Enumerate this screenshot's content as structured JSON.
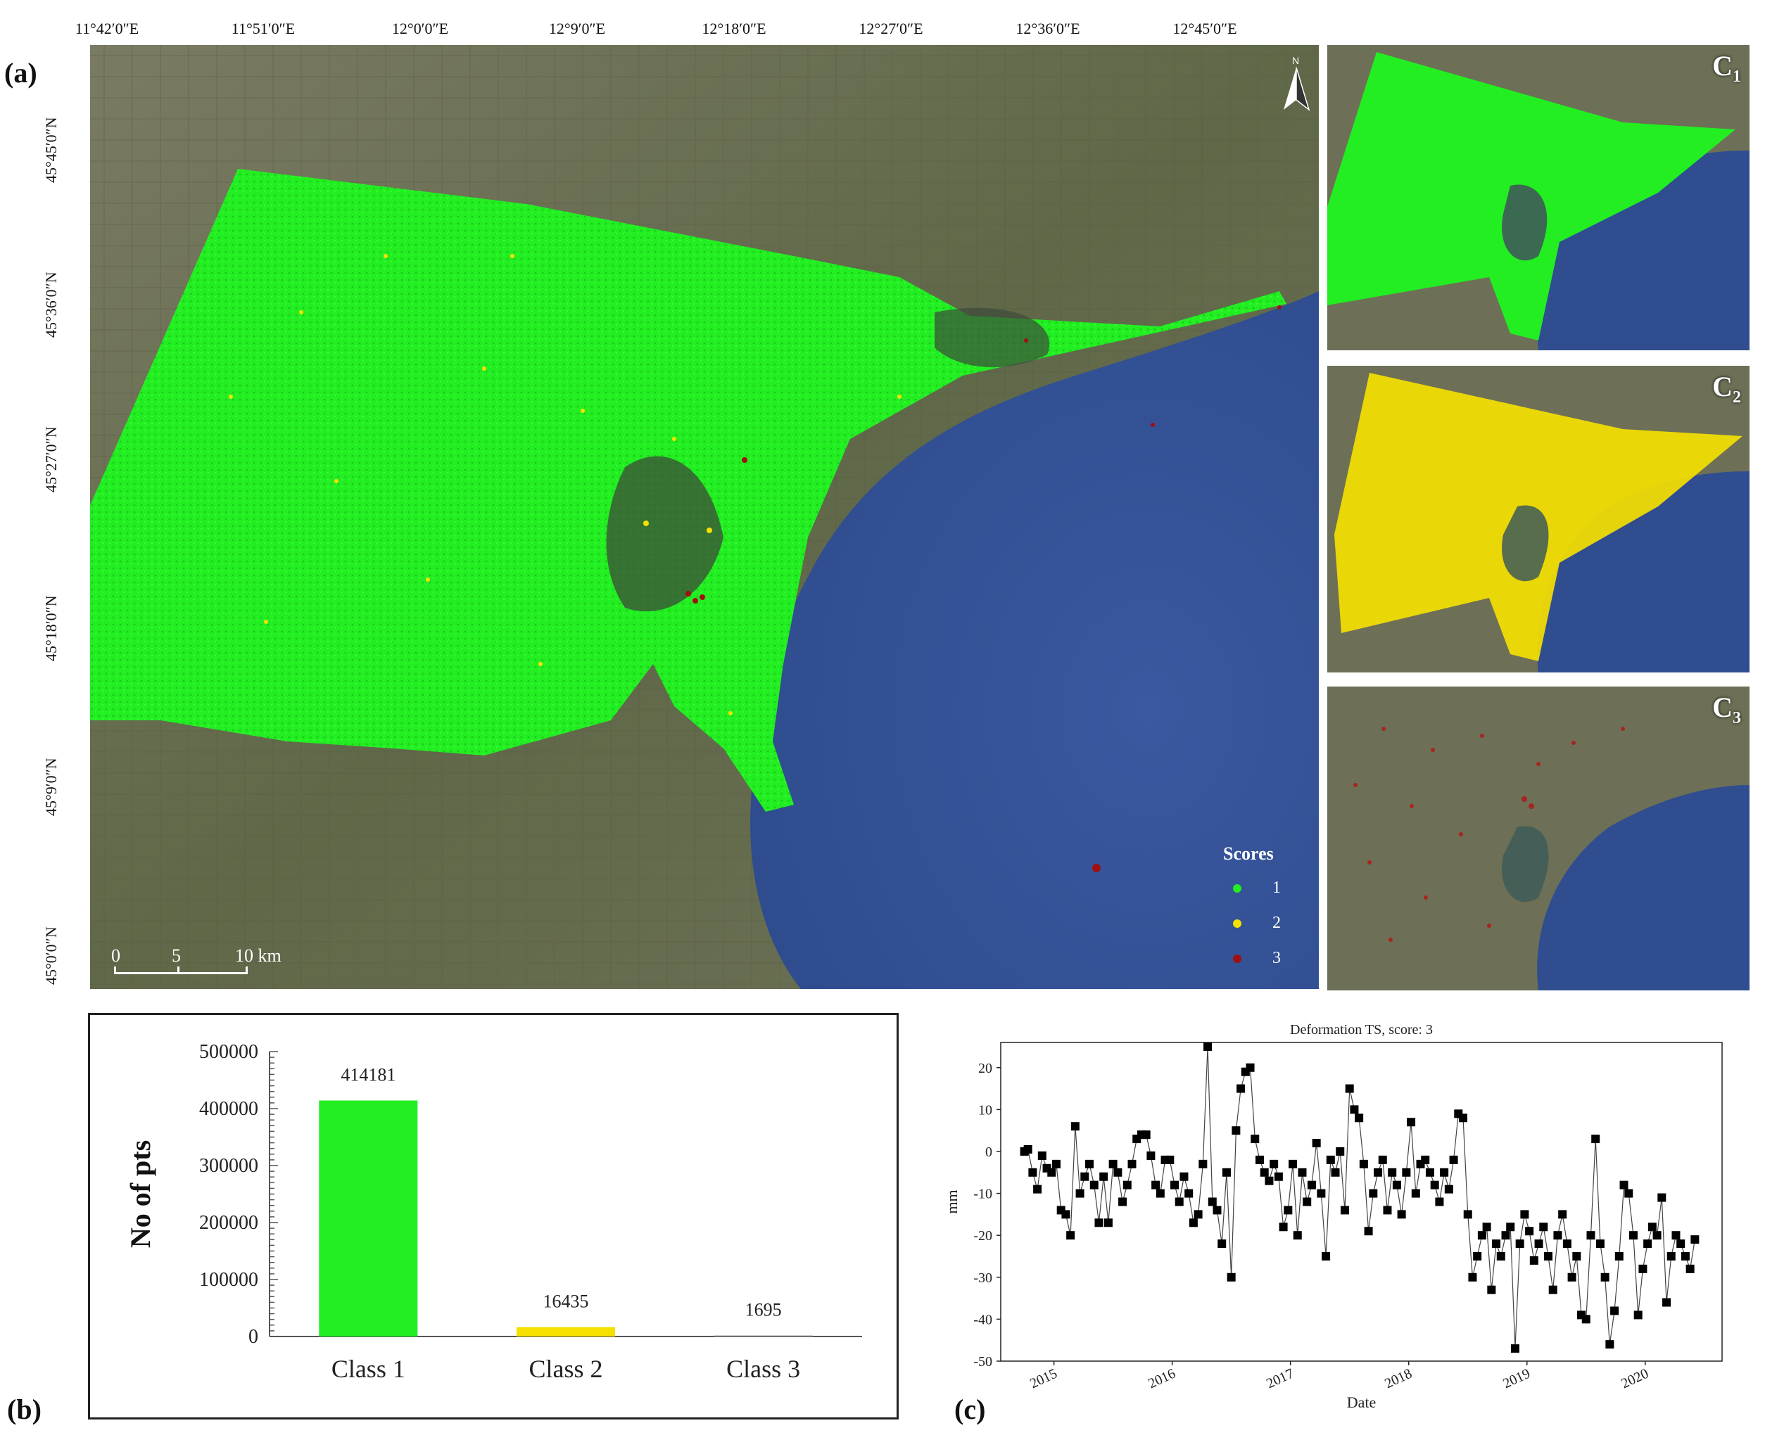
{
  "panel_labels": {
    "a": "(a)",
    "b": "(b)",
    "c": "(c)"
  },
  "map": {
    "lon_ticks": [
      "11°42′0″E",
      "11°51′0″E",
      "12°0′0″E",
      "12°9′0″E",
      "12°18′0″E",
      "12°27′0″E",
      "12°36′0″E",
      "12°45′0″E"
    ],
    "lat_ticks": [
      "45°45′0″N",
      "45°36′0″N",
      "45°27′0″N",
      "45°18′0″N",
      "45°9′0″N",
      "45°0′0″N"
    ],
    "north_label": "N",
    "scale_labels": [
      "0",
      "5",
      "10 km"
    ],
    "legend": {
      "title": "Scores",
      "items": [
        {
          "label": "1",
          "color": "#22ee22"
        },
        {
          "label": "2",
          "color": "#f5e000"
        },
        {
          "label": "3",
          "color": "#a01010"
        }
      ]
    },
    "insets": [
      {
        "label": "C",
        "sub": "1",
        "color": "#22ee22"
      },
      {
        "label": "C",
        "sub": "2",
        "color": "#f5e000"
      },
      {
        "label": "C",
        "sub": "3",
        "color": "#b01818"
      }
    ]
  },
  "chart_data": [
    {
      "type": "bar",
      "categories": [
        "Class 1",
        "Class 2",
        "Class 3"
      ],
      "values": [
        414181,
        16435,
        1695
      ],
      "data_labels": [
        "414181",
        "16435",
        "1695"
      ],
      "colors": [
        "#22ee22",
        "#f5e000",
        "#888888"
      ],
      "ylabel": "No of pts",
      "ylim": [
        0,
        500000
      ],
      "yticks": [
        "0",
        "100000",
        "200000",
        "300000",
        "400000",
        "500000"
      ]
    },
    {
      "type": "line",
      "title": "Deformation TS, score: 3",
      "xlabel": "Date",
      "ylabel": "mm",
      "xlim": [
        2014.55,
        2020.65
      ],
      "ylim": [
        -50,
        26
      ],
      "xticks": [
        "2015",
        "2016",
        "2017",
        "2018",
        "2019",
        "2020"
      ],
      "yticks": [
        "20",
        "10",
        "0",
        "-10",
        "-20",
        "-30",
        "-40",
        "-50"
      ],
      "x": [
        2014.75,
        2014.78,
        2014.82,
        2014.86,
        2014.9,
        2014.94,
        2014.98,
        2015.02,
        2015.06,
        2015.1,
        2015.14,
        2015.18,
        2015.22,
        2015.26,
        2015.3,
        2015.34,
        2015.38,
        2015.42,
        2015.46,
        2015.5,
        2015.54,
        2015.58,
        2015.62,
        2015.66,
        2015.7,
        2015.74,
        2015.78,
        2015.82,
        2015.86,
        2015.9,
        2015.94,
        2015.98,
        2016.02,
        2016.06,
        2016.1,
        2016.14,
        2016.18,
        2016.22,
        2016.26,
        2016.3,
        2016.34,
        2016.38,
        2016.42,
        2016.46,
        2016.5,
        2016.54,
        2016.58,
        2016.62,
        2016.66,
        2016.7,
        2016.74,
        2016.78,
        2016.82,
        2016.86,
        2016.9,
        2016.94,
        2016.98,
        2017.02,
        2017.06,
        2017.1,
        2017.14,
        2017.18,
        2017.22,
        2017.26,
        2017.3,
        2017.34,
        2017.38,
        2017.42,
        2017.46,
        2017.5,
        2017.54,
        2017.58,
        2017.62,
        2017.66,
        2017.7,
        2017.74,
        2017.78,
        2017.82,
        2017.86,
        2017.9,
        2017.94,
        2017.98,
        2018.02,
        2018.06,
        2018.1,
        2018.14,
        2018.18,
        2018.22,
        2018.26,
        2018.3,
        2018.34,
        2018.38,
        2018.42,
        2018.46,
        2018.5,
        2018.54,
        2018.58,
        2018.62,
        2018.66,
        2018.7,
        2018.74,
        2018.78,
        2018.82,
        2018.86,
        2018.9,
        2018.94,
        2018.98,
        2019.02,
        2019.06,
        2019.1,
        2019.14,
        2019.18,
        2019.22,
        2019.26,
        2019.3,
        2019.34,
        2019.38,
        2019.42,
        2019.46,
        2019.5,
        2019.54,
        2019.58,
        2019.62,
        2019.66,
        2019.7,
        2019.74,
        2019.78,
        2019.82,
        2019.86,
        2019.9,
        2019.94,
        2019.98,
        2020.02,
        2020.06,
        2020.1,
        2020.14,
        2020.18,
        2020.22,
        2020.26,
        2020.3,
        2020.34,
        2020.38,
        2020.42
      ],
      "y": [
        0,
        0.5,
        -5,
        -9,
        -1,
        -4,
        -5,
        -3,
        -14,
        -15,
        -20,
        6,
        -10,
        -6,
        -3,
        -8,
        -17,
        -6,
        -17,
        -3,
        -5,
        -12,
        -8,
        -3,
        3,
        4,
        4,
        -1,
        -8,
        -10,
        -2,
        -2,
        -8,
        -12,
        -6,
        -10,
        -17,
        -15,
        -3,
        25,
        -12,
        -14,
        -22,
        -5,
        -30,
        5,
        15,
        19,
        20,
        3,
        -2,
        -5,
        -7,
        -3,
        -6,
        -18,
        -14,
        -3,
        -20,
        -5,
        -12,
        -8,
        2,
        -10,
        -25,
        -2,
        -5,
        0,
        -14,
        15,
        10,
        8,
        -3,
        -19,
        -10,
        -5,
        -2,
        -14,
        -5,
        -8,
        -15,
        -5,
        7,
        -10,
        -3,
        -2,
        -5,
        -8,
        -12,
        -5,
        -9,
        -2,
        9,
        8,
        -15,
        -30,
        -25,
        -20,
        -18,
        -33,
        -22,
        -25,
        -20,
        -18,
        -47,
        -22,
        -15,
        -19,
        -26,
        -22,
        -18,
        -25,
        -33,
        -20,
        -15,
        -22,
        -30,
        -25,
        -39,
        -40,
        -20,
        3,
        -22,
        -30,
        -46,
        -38,
        -25,
        -8,
        -10,
        -20,
        -39,
        -28,
        -22,
        -18,
        -20,
        -11,
        -36,
        -25,
        -20,
        -22,
        -25,
        -28,
        -21
      ]
    }
  ]
}
